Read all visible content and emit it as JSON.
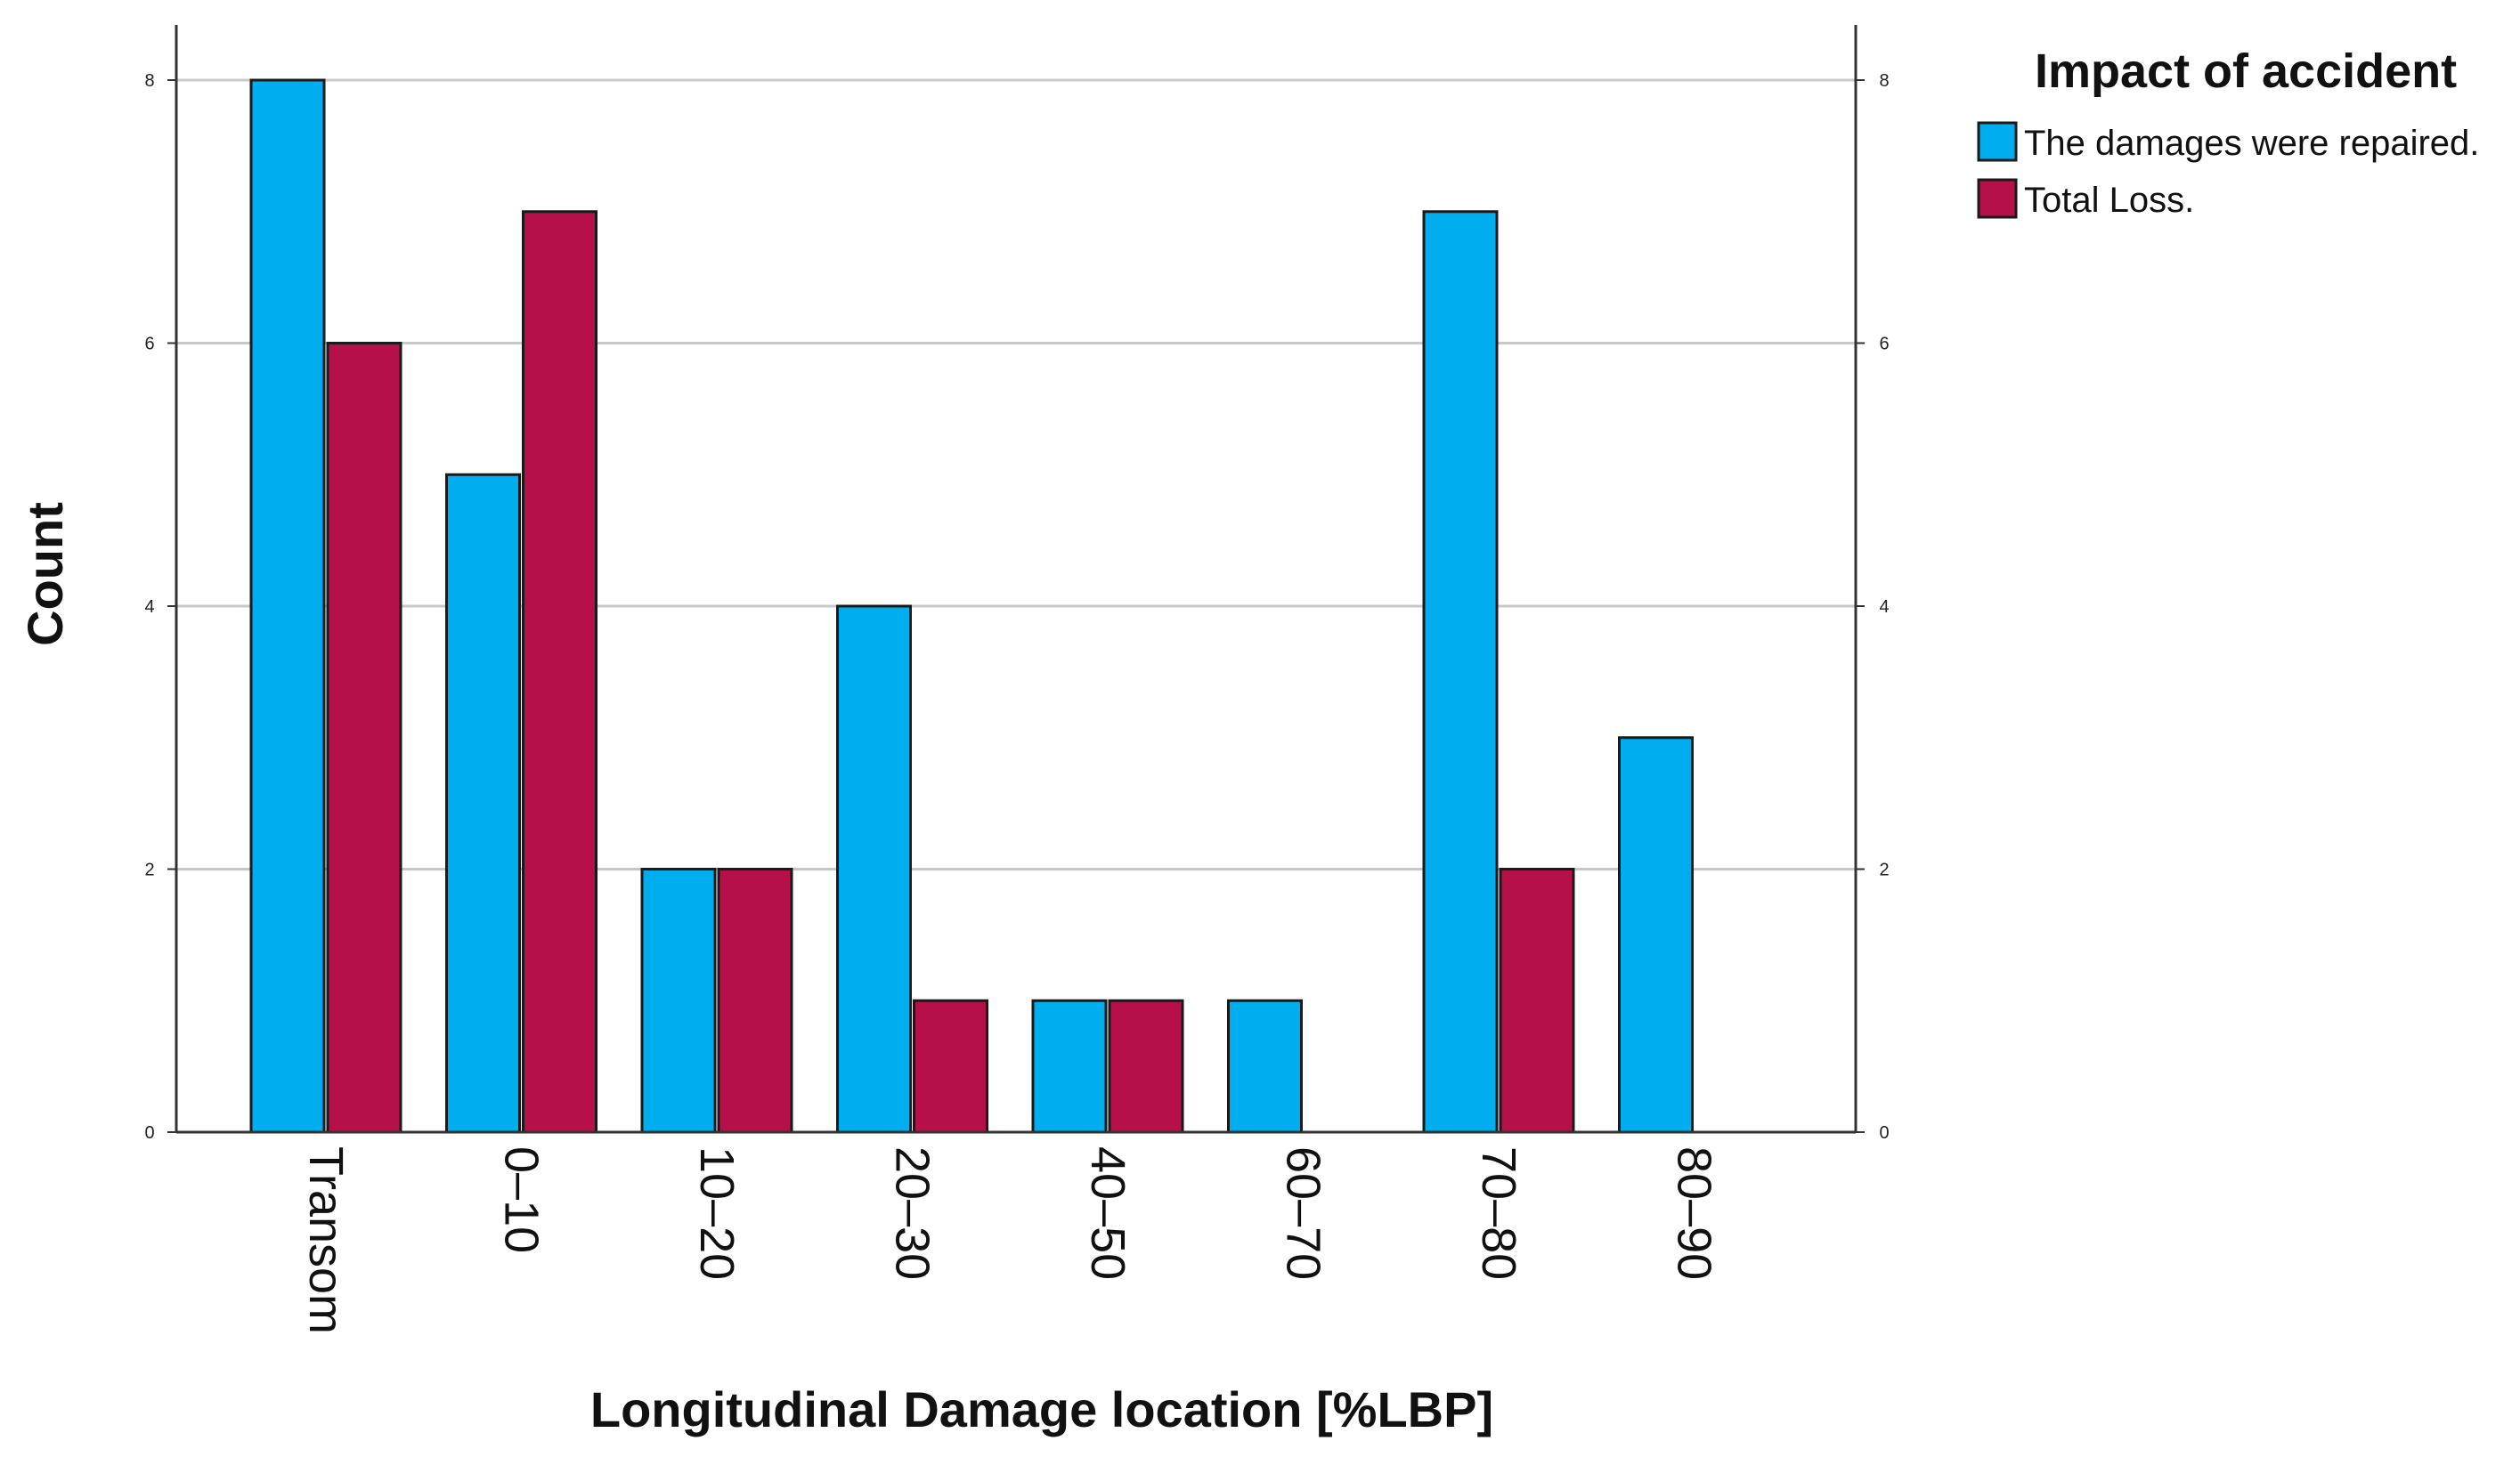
{
  "colors": {
    "repaired": "#00aeef",
    "total_loss": "#b5104a",
    "gridline": "#c8c8c8",
    "axis": "#333333",
    "bar_stroke": "#1a1a1a"
  },
  "chart_data": {
    "type": "bar",
    "title": "",
    "xlabel": "Longitudinal Damage location [%LBP]",
    "ylabel": "Count",
    "ylim": [
      0,
      8
    ],
    "yticks": [
      0,
      2,
      4,
      6,
      8
    ],
    "ytick_labels": [
      "0",
      "2",
      "4",
      "6",
      "8"
    ],
    "grid": true,
    "secondary_y_axis": true,
    "categories": [
      "Transom",
      "0–10",
      "10–20",
      "20–30",
      "40–50",
      "60–70",
      "70–80",
      "80–90"
    ],
    "series": [
      {
        "name": "The damages were repaired.",
        "color_key": "repaired",
        "values": [
          8,
          5,
          2,
          4,
          1,
          1,
          7,
          3
        ]
      },
      {
        "name": "Total Loss.",
        "color_key": "total_loss",
        "values": [
          6,
          7,
          2,
          1,
          1,
          0,
          2,
          0
        ]
      }
    ],
    "legend": {
      "title": "Impact of accident",
      "placement": "top-right-outside"
    }
  }
}
